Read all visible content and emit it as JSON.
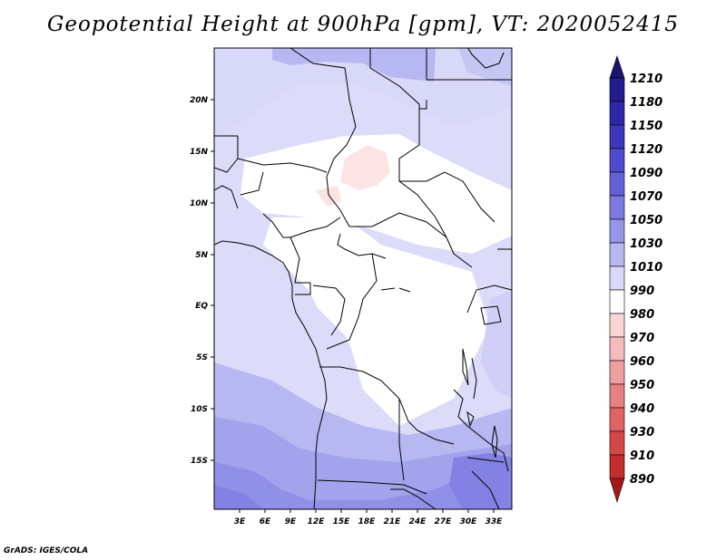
{
  "title": "Geopotential Height at 900hPa [gpm], VT: 2020052415",
  "footer": "GrADS: IGES/COLA",
  "map": {
    "lat_labels": [
      "20N",
      "15N",
      "10N",
      "5N",
      "EQ",
      "5S",
      "10S",
      "15S"
    ],
    "lon_labels": [
      "3E",
      "6E",
      "9E",
      "12E",
      "15E",
      "18E",
      "21E",
      "24E",
      "27E",
      "30E",
      "33E"
    ]
  },
  "colorbar": {
    "labels": [
      "1210",
      "1180",
      "1150",
      "1120",
      "1090",
      "1070",
      "1050",
      "1030",
      "1010",
      "990",
      "980",
      "970",
      "960",
      "950",
      "940",
      "930",
      "910",
      "890"
    ],
    "colors": [
      "#1a1470",
      "#231c8c",
      "#2e28a6",
      "#3c37bb",
      "#4d4ccc",
      "#6261d8",
      "#7b7ae2",
      "#9796ea",
      "#b7b7f2",
      "#d8d8f9",
      "#ffffff",
      "#fbd5d5",
      "#f6bcbc",
      "#ef9f9f",
      "#e78181",
      "#df6464",
      "#d44747",
      "#c42d2d",
      "#a61818"
    ]
  }
}
